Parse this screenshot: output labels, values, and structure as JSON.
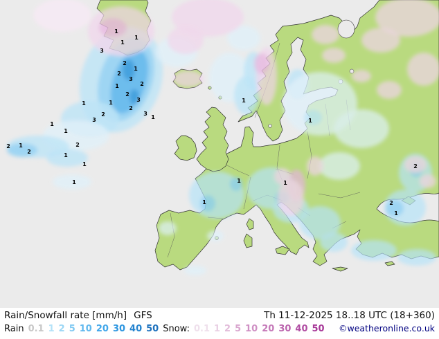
{
  "footer": {
    "product": "Rain/Snowfall rate [mm/h]",
    "model": "GFS",
    "datetime": "Th 11-12-2025 18..18 UTC (18+360)",
    "rain_label": "Rain",
    "rain_values": [
      "0.1",
      "1",
      "2",
      "5",
      "10",
      "20",
      "30",
      "40",
      "50"
    ],
    "rain_value_colors": [
      "#c8c8c8",
      "#b4e2f8",
      "#9cd7f5",
      "#80c9f2",
      "#60b8ee",
      "#42a7ea",
      "#2d96e0",
      "#2383cf",
      "#1d71bd"
    ],
    "snow_label": "Snow:",
    "snow_values": [
      "0.1",
      "1",
      "2",
      "5",
      "10",
      "20",
      "30",
      "40",
      "50"
    ],
    "snow_value_colors": [
      "#efe0ec",
      "#e9d0e4",
      "#e2bcda",
      "#d9a6cf",
      "#cf90c4",
      "#c57ab9",
      "#bb64ae",
      "#b14ea3",
      "#a73898"
    ],
    "copyright": "©weatheronline.co.uk"
  },
  "map": {
    "sea_color": "#ebebeb",
    "land_color": "#b9da7f",
    "coast_color": "#333333",
    "rain_colors": [
      "#def1fb",
      "#b5e4f9",
      "#86cdf4",
      "#4aaeec",
      "#1f8fda"
    ],
    "snow_colors": [
      "#f9eaf6",
      "#f1d4ec",
      "#e6b3de"
    ],
    "point_values": [
      [
        168,
        48,
        "1"
      ],
      [
        197,
        57,
        "1"
      ],
      [
        147,
        76,
        "3"
      ],
      [
        177,
        64,
        "1"
      ],
      [
        180,
        94,
        "2"
      ],
      [
        196,
        102,
        "1"
      ],
      [
        172,
        109,
        "2"
      ],
      [
        189,
        117,
        "3"
      ],
      [
        205,
        124,
        "2"
      ],
      [
        169,
        127,
        "1"
      ],
      [
        184,
        139,
        "2"
      ],
      [
        200,
        147,
        "3"
      ],
      [
        160,
        151,
        "1"
      ],
      [
        189,
        159,
        "2"
      ],
      [
        210,
        167,
        "3"
      ],
      [
        221,
        172,
        "1"
      ],
      [
        149,
        168,
        "2"
      ],
      [
        136,
        176,
        "3"
      ],
      [
        121,
        152,
        "1"
      ],
      [
        75,
        182,
        "1"
      ],
      [
        95,
        192,
        "1"
      ],
      [
        12,
        214,
        "2"
      ],
      [
        30,
        213,
        "1"
      ],
      [
        42,
        222,
        "2"
      ],
      [
        95,
        227,
        "1"
      ],
      [
        112,
        212,
        "2"
      ],
      [
        122,
        240,
        "1"
      ],
      [
        107,
        266,
        "1"
      ],
      [
        352,
        148,
        "1"
      ],
      [
        448,
        177,
        "1"
      ],
      [
        345,
        264,
        "1"
      ],
      [
        295,
        295,
        "1"
      ],
      [
        412,
        267,
        "1"
      ],
      [
        600,
        243,
        "2"
      ],
      [
        565,
        296,
        "2"
      ],
      [
        572,
        311,
        "1"
      ]
    ],
    "precip_areas": [
      [
        "r",
        1,
        175,
        115,
        58,
        78,
        18
      ],
      [
        "r",
        2,
        182,
        115,
        38,
        62,
        18
      ],
      [
        "r",
        3,
        187,
        118,
        24,
        48,
        18
      ],
      [
        "r",
        4,
        186,
        101,
        9,
        15,
        0
      ],
      [
        "r",
        4,
        194,
        140,
        7,
        11,
        0
      ],
      [
        "r",
        1,
        130,
        172,
        42,
        26,
        0
      ],
      [
        "r",
        0,
        110,
        196,
        48,
        22,
        0
      ],
      [
        "r",
        1,
        55,
        212,
        45,
        16,
        0
      ],
      [
        "r",
        2,
        32,
        217,
        22,
        10,
        0
      ],
      [
        "r",
        1,
        97,
        228,
        30,
        13,
        0
      ],
      [
        "r",
        0,
        104,
        263,
        28,
        11,
        0
      ],
      [
        "r",
        0,
        255,
        75,
        30,
        22,
        0
      ],
      [
        "r",
        0,
        332,
        112,
        30,
        36,
        0
      ],
      [
        "r",
        1,
        356,
        138,
        18,
        28,
        0
      ],
      [
        "r",
        1,
        366,
        103,
        14,
        28,
        0
      ],
      [
        "r",
        0,
        352,
        55,
        24,
        18,
        0
      ],
      [
        "r",
        1,
        430,
        122,
        16,
        22,
        0
      ],
      [
        "r",
        0,
        462,
        150,
        54,
        46,
        0
      ],
      [
        "r",
        0,
        522,
        186,
        40,
        28,
        0
      ],
      [
        "r",
        1,
        452,
        170,
        13,
        11,
        0
      ],
      [
        "r",
        0,
        490,
        240,
        30,
        20,
        0
      ],
      [
        "r",
        1,
        313,
        282,
        40,
        34,
        0
      ],
      [
        "r",
        2,
        300,
        294,
        11,
        12,
        0
      ],
      [
        "r",
        2,
        341,
        266,
        9,
        10,
        0
      ],
      [
        "r",
        1,
        392,
        272,
        36,
        30,
        0
      ],
      [
        "r",
        1,
        420,
        302,
        26,
        20,
        0
      ],
      [
        "r",
        2,
        407,
        286,
        10,
        10,
        0
      ],
      [
        "r",
        1,
        462,
        322,
        30,
        24,
        0
      ],
      [
        "r",
        1,
        482,
        350,
        20,
        14,
        0
      ],
      [
        "r",
        1,
        540,
        362,
        33,
        15,
        0
      ],
      [
        "r",
        1,
        602,
        372,
        28,
        12,
        0
      ],
      [
        "r",
        1,
        585,
        300,
        30,
        26,
        0
      ],
      [
        "r",
        2,
        570,
        301,
        13,
        12,
        0
      ],
      [
        "r",
        1,
        600,
        250,
        24,
        28,
        0
      ],
      [
        "r",
        2,
        601,
        244,
        10,
        12,
        0
      ],
      [
        "r",
        0,
        242,
        330,
        13,
        10,
        0
      ],
      [
        "r",
        0,
        311,
        341,
        12,
        8,
        0
      ],
      [
        "r",
        0,
        282,
        391,
        16,
        7,
        0
      ],
      [
        "s",
        1,
        175,
        45,
        48,
        36,
        0
      ],
      [
        "s",
        2,
        163,
        40,
        20,
        14,
        0
      ],
      [
        "s",
        1,
        300,
        25,
        52,
        28,
        0
      ],
      [
        "s",
        1,
        268,
        58,
        26,
        20,
        0
      ],
      [
        "s",
        0,
        90,
        22,
        42,
        24,
        0
      ],
      [
        "s",
        1,
        272,
        114,
        22,
        12,
        0
      ],
      [
        "s",
        1,
        385,
        110,
        15,
        42,
        0
      ],
      [
        "s",
        2,
        378,
        92,
        11,
        15,
        0
      ],
      [
        "s",
        1,
        590,
        25,
        48,
        28,
        0
      ],
      [
        "s",
        1,
        550,
        58,
        28,
        18,
        0
      ],
      [
        "s",
        1,
        612,
        100,
        24,
        24,
        0
      ],
      [
        "s",
        1,
        562,
        130,
        18,
        13,
        0
      ],
      [
        "s",
        1,
        470,
        50,
        20,
        14,
        0
      ],
      [
        "s",
        1,
        482,
        80,
        17,
        11,
        0
      ],
      [
        "s",
        1,
        522,
        110,
        14,
        9,
        0
      ],
      [
        "s",
        2,
        428,
        268,
        13,
        23,
        0
      ],
      [
        "s",
        1,
        420,
        286,
        19,
        26,
        0
      ],
      [
        "s",
        1,
        455,
        240,
        12,
        14,
        0
      ],
      [
        "s",
        1,
        408,
        255,
        12,
        12,
        0
      ],
      [
        "s",
        1,
        600,
        238,
        16,
        12,
        0
      ],
      [
        "s",
        1,
        618,
        262,
        12,
        10,
        0
      ]
    ]
  }
}
